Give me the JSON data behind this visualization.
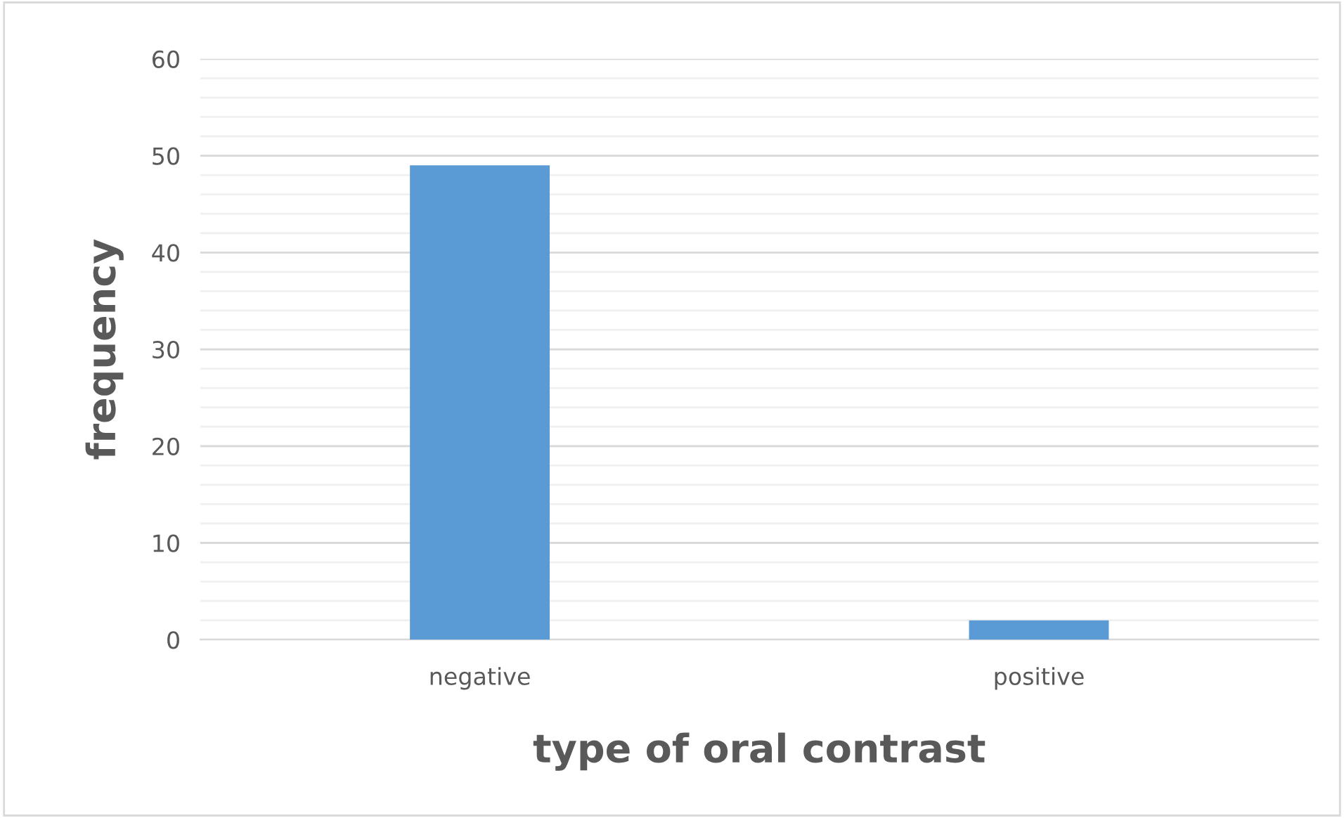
{
  "chart_data": {
    "type": "bar",
    "xlabel": "type of oral contrast",
    "ylabel": "frequency",
    "categories": [
      "negative",
      "positive"
    ],
    "values": [
      49,
      2
    ],
    "color": "#5b9bd5",
    "ylim": [
      0,
      60
    ],
    "yticks": [
      0,
      10,
      20,
      30,
      40,
      50,
      60
    ],
    "grid": "y",
    "legend": false
  }
}
